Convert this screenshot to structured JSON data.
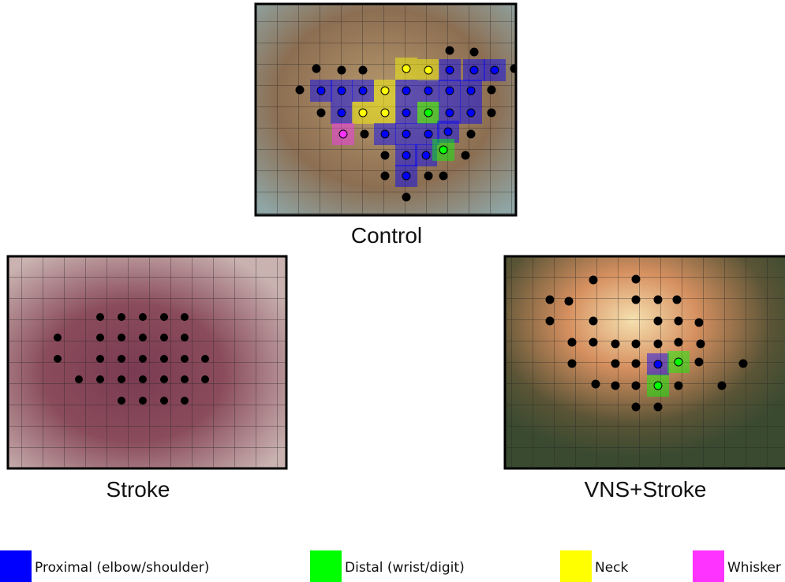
{
  "panels": [
    {
      "caption": "Control"
    },
    {
      "caption": "Stroke"
    },
    {
      "caption": "VNS+Stroke"
    }
  ],
  "legend": [
    {
      "label": "Proximal (elbow/shoulder)",
      "color": "#0000ff"
    },
    {
      "label": "Distal (wrist/digit)",
      "color": "#00ff00"
    },
    {
      "label": "Neck",
      "color": "#ffff00"
    },
    {
      "label": "Whisker",
      "color": "#ff33ff"
    }
  ]
}
